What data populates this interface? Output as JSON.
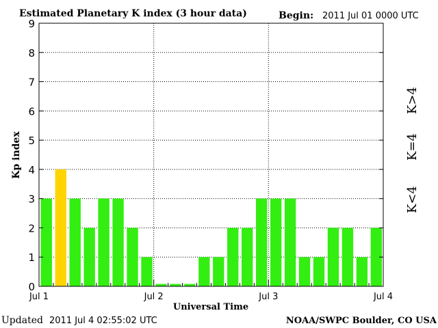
{
  "header": {
    "title": "Estimated Planetary K index (3 hour data)",
    "begin_label": "Begin:",
    "begin_value": "2011 Jul 01 0000 UTC"
  },
  "footer": {
    "updated_label": "Updated",
    "updated_value": "2011 Jul  4 02:55:02 UTC",
    "source": "NOAA/SWPC Boulder, CO USA"
  },
  "legend": {
    "low": "K<4",
    "mid": "K=4",
    "high": "K>4"
  },
  "colors": {
    "low": "#33ee11",
    "mid": "#ffd400",
    "high": "#ee2200",
    "background": "#ffffff",
    "axis": "#000000"
  },
  "chart_data": {
    "type": "bar",
    "ylabel": "Kp index",
    "xlabel": "Universal Time",
    "ylim": [
      0,
      9
    ],
    "y_ticks": [
      "0",
      "1",
      "2",
      "3",
      "4",
      "5",
      "6",
      "7",
      "8",
      "9"
    ],
    "x_tick_labels": [
      "Jul 1",
      "Jul 2",
      "Jul 3",
      "Jul 4"
    ],
    "grid": true,
    "values": [
      3,
      4,
      3,
      2,
      3,
      3,
      2,
      1,
      0,
      0,
      0,
      1,
      1,
      2,
      2,
      3,
      3,
      3,
      1,
      1,
      2,
      2,
      1,
      2
    ]
  }
}
